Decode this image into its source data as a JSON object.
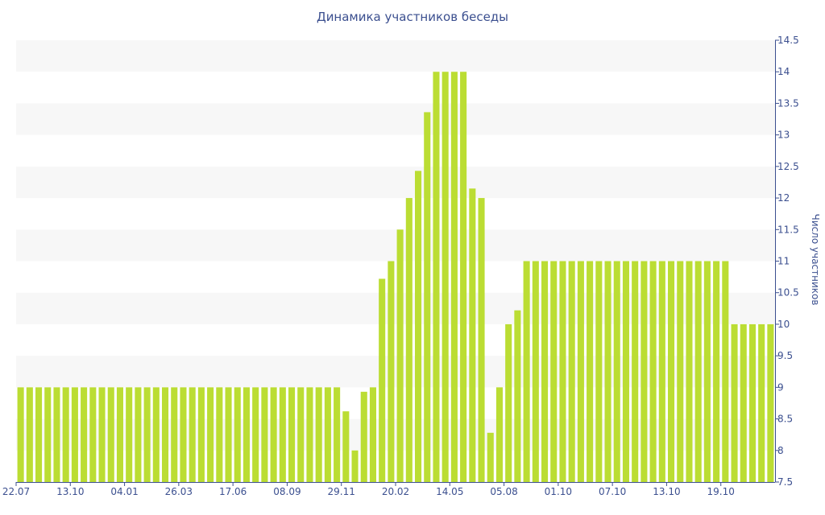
{
  "chart_data": {
    "type": "bar",
    "title": "Динамика участников беседы",
    "ylabel": "Число участников",
    "xlabel": "",
    "y_axis_side": "right",
    "ylim": [
      7.5,
      14.5
    ],
    "y_ticks": [
      7.5,
      8,
      8.5,
      9,
      9.5,
      10,
      10.5,
      11,
      11.5,
      12,
      12.5,
      13,
      13.5,
      14,
      14.5
    ],
    "x_tick_labels": [
      {
        "index": 0,
        "label": "22.07"
      },
      {
        "index": 6,
        "label": "13.10"
      },
      {
        "index": 12,
        "label": "04.01"
      },
      {
        "index": 18,
        "label": "26.03"
      },
      {
        "index": 24,
        "label": "17.06"
      },
      {
        "index": 30,
        "label": "08.09"
      },
      {
        "index": 36,
        "label": "29.11"
      },
      {
        "index": 42,
        "label": "20.02"
      },
      {
        "index": 48,
        "label": "14.05"
      },
      {
        "index": 54,
        "label": "05.08"
      },
      {
        "index": 60,
        "label": "01.10"
      },
      {
        "index": 66,
        "label": "07.10"
      },
      {
        "index": 72,
        "label": "13.10"
      },
      {
        "index": 78,
        "label": "19.10"
      }
    ],
    "values": [
      9,
      9,
      9,
      9,
      9,
      9,
      9,
      9,
      9,
      9,
      9,
      9,
      9,
      9,
      9,
      9,
      9,
      9,
      9,
      9,
      9,
      9,
      9,
      9,
      9,
      9,
      9,
      9,
      9,
      9,
      9,
      9,
      9,
      9,
      9,
      9,
      8.62,
      8,
      8.93,
      9,
      10.72,
      11,
      11.5,
      12,
      12.43,
      13.36,
      14,
      14,
      14,
      14,
      12.15,
      12,
      8.28,
      9,
      10,
      10.22,
      11,
      11,
      11,
      11,
      11,
      11,
      11,
      11,
      11,
      11,
      11,
      11,
      11,
      11,
      11,
      11,
      11,
      11,
      11,
      11,
      11,
      11,
      11,
      10,
      10,
      10,
      10,
      10
    ],
    "colors": {
      "bar": "#bbdd33",
      "band_light": "#f7f7f7",
      "band_white": "#ffffff",
      "axis": "#3b4f8f",
      "text": "#3b4f8f"
    },
    "grid": "horizontal alternating bands",
    "legend": "none"
  }
}
